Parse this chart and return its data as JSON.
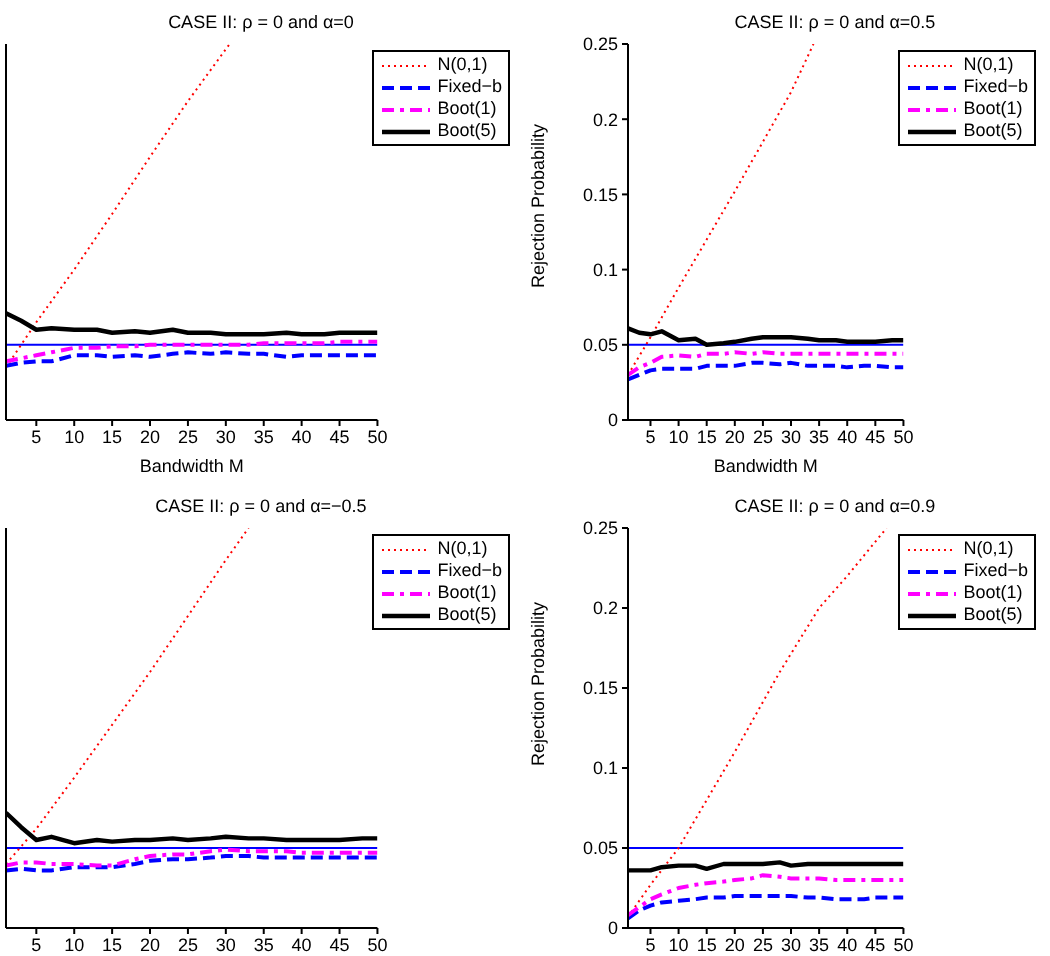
{
  "chart_data": [
    {
      "type": "line",
      "title": "CASE II: ρ = 0 and α=0",
      "xlabel": "Bandwidth M",
      "x": [
        1,
        3,
        5,
        7,
        10,
        13,
        15,
        18,
        20,
        23,
        25,
        28,
        30,
        33,
        35,
        38,
        40,
        43,
        45,
        48,
        50
      ],
      "xlim": [
        1,
        50
      ],
      "xticks": [
        5,
        10,
        15,
        20,
        25,
        30,
        35,
        40,
        45,
        50
      ],
      "ylim": [
        0,
        0.25
      ],
      "yticks": [
        0,
        0.05,
        0.1,
        0.15,
        0.2,
        0.25
      ],
      "tick_labels": "x",
      "legend": "top right",
      "ref_lines": [
        {
          "axis": "y",
          "value": 0.05,
          "color": "#0000ff"
        }
      ],
      "series": [
        {
          "name": "N(0,1)",
          "color": "#ff0000",
          "line_style": "dotted",
          "x": [
            1,
            5,
            10,
            15,
            20,
            25,
            30.5
          ],
          "values": [
            0.035,
            0.065,
            0.1,
            0.137,
            0.175,
            0.212,
            0.25
          ]
        },
        {
          "name": "Fixed−b",
          "color": "#0000ff",
          "line_style": "dashed",
          "values": [
            0.036,
            0.038,
            0.039,
            0.039,
            0.043,
            0.043,
            0.042,
            0.043,
            0.042,
            0.044,
            0.045,
            0.044,
            0.045,
            0.044,
            0.044,
            0.042,
            0.043,
            0.043,
            0.043,
            0.043,
            0.043
          ]
        },
        {
          "name": "Boot(1)",
          "color": "#ff00ff",
          "line_style": "dashdot",
          "values": [
            0.039,
            0.041,
            0.043,
            0.045,
            0.048,
            0.048,
            0.049,
            0.049,
            0.05,
            0.05,
            0.05,
            0.05,
            0.05,
            0.05,
            0.051,
            0.051,
            0.051,
            0.051,
            0.052,
            0.052,
            0.052
          ]
        },
        {
          "name": "Boot(5)",
          "color": "#000000",
          "line_style": "solid",
          "values": [
            0.071,
            0.066,
            0.06,
            0.061,
            0.06,
            0.06,
            0.058,
            0.059,
            0.058,
            0.06,
            0.058,
            0.058,
            0.057,
            0.057,
            0.057,
            0.058,
            0.057,
            0.057,
            0.058,
            0.058,
            0.058
          ]
        }
      ]
    },
    {
      "type": "line",
      "title": "CASE II: ρ = 0 and α=0.5",
      "xlabel": "Bandwidth M",
      "ylabel": "Rejection Probability",
      "x": [
        1,
        3,
        5,
        7,
        10,
        13,
        15,
        18,
        20,
        23,
        25,
        28,
        30,
        33,
        35,
        38,
        40,
        43,
        45,
        48,
        50
      ],
      "xlim": [
        1,
        50
      ],
      "xticks": [
        5,
        10,
        15,
        20,
        25,
        30,
        35,
        40,
        45,
        50
      ],
      "ylim": [
        0,
        0.25
      ],
      "yticks": [
        0,
        0.05,
        0.1,
        0.15,
        0.2,
        0.25
      ],
      "legend": "top right",
      "ref_lines": [
        {
          "axis": "y",
          "value": 0.05,
          "color": "#0000ff"
        }
      ],
      "series": [
        {
          "name": "N(0,1)",
          "color": "#ff0000",
          "line_style": "dotted",
          "x": [
            1,
            5,
            10,
            15,
            20,
            25,
            30,
            34
          ],
          "values": [
            0.03,
            0.055,
            0.088,
            0.12,
            0.152,
            0.185,
            0.218,
            0.25
          ]
        },
        {
          "name": "Fixed−b",
          "color": "#0000ff",
          "line_style": "dashed",
          "values": [
            0.027,
            0.03,
            0.033,
            0.034,
            0.034,
            0.034,
            0.036,
            0.036,
            0.036,
            0.038,
            0.038,
            0.037,
            0.038,
            0.036,
            0.036,
            0.036,
            0.035,
            0.036,
            0.036,
            0.035,
            0.035
          ]
        },
        {
          "name": "Boot(1)",
          "color": "#ff00ff",
          "line_style": "dashdot",
          "values": [
            0.03,
            0.035,
            0.038,
            0.042,
            0.043,
            0.042,
            0.044,
            0.044,
            0.045,
            0.044,
            0.045,
            0.044,
            0.044,
            0.044,
            0.044,
            0.044,
            0.044,
            0.044,
            0.044,
            0.044,
            0.044
          ]
        },
        {
          "name": "Boot(5)",
          "color": "#000000",
          "line_style": "solid",
          "values": [
            0.061,
            0.058,
            0.057,
            0.059,
            0.053,
            0.054,
            0.05,
            0.051,
            0.052,
            0.054,
            0.055,
            0.055,
            0.055,
            0.054,
            0.053,
            0.053,
            0.052,
            0.052,
            0.052,
            0.053,
            0.053
          ]
        }
      ]
    },
    {
      "type": "line",
      "title": "CASE II: ρ = 0 and α=−0.5",
      "x": [
        1,
        3,
        5,
        7,
        10,
        13,
        15,
        18,
        20,
        23,
        25,
        28,
        30,
        33,
        35,
        38,
        40,
        43,
        45,
        48,
        50
      ],
      "xlim": [
        1,
        50
      ],
      "xticks": [
        5,
        10,
        15,
        20,
        25,
        30,
        35,
        40,
        45,
        50
      ],
      "ylim": [
        0,
        0.25
      ],
      "yticks": [
        0,
        0.05,
        0.1,
        0.15,
        0.2,
        0.25
      ],
      "tick_labels": "x",
      "legend": "top right",
      "ref_lines": [
        {
          "axis": "y",
          "value": 0.05,
          "color": "#0000ff"
        }
      ],
      "series": [
        {
          "name": "N(0,1)",
          "color": "#ff0000",
          "line_style": "dotted",
          "x": [
            1,
            5,
            10,
            15,
            20,
            25,
            30,
            33
          ],
          "values": [
            0.04,
            0.062,
            0.094,
            0.127,
            0.16,
            0.195,
            0.23,
            0.25
          ]
        },
        {
          "name": "Fixed−b",
          "color": "#0000ff",
          "line_style": "dashed",
          "values": [
            0.036,
            0.037,
            0.036,
            0.036,
            0.038,
            0.038,
            0.038,
            0.04,
            0.042,
            0.043,
            0.043,
            0.044,
            0.045,
            0.045,
            0.044,
            0.044,
            0.044,
            0.044,
            0.044,
            0.044,
            0.044
          ]
        },
        {
          "name": "Boot(1)",
          "color": "#ff00ff",
          "line_style": "dashdot",
          "values": [
            0.039,
            0.041,
            0.041,
            0.04,
            0.04,
            0.039,
            0.039,
            0.043,
            0.045,
            0.046,
            0.046,
            0.048,
            0.049,
            0.048,
            0.048,
            0.048,
            0.047,
            0.047,
            0.047,
            0.047,
            0.047
          ]
        },
        {
          "name": "Boot(5)",
          "color": "#000000",
          "line_style": "solid",
          "values": [
            0.072,
            0.063,
            0.055,
            0.057,
            0.053,
            0.055,
            0.054,
            0.055,
            0.055,
            0.056,
            0.055,
            0.056,
            0.057,
            0.056,
            0.056,
            0.055,
            0.055,
            0.055,
            0.055,
            0.056,
            0.056
          ]
        }
      ]
    },
    {
      "type": "line",
      "title": "CASE II: ρ = 0 and α=0.9",
      "ylabel": "Rejection Probability",
      "x": [
        1,
        3,
        5,
        7,
        10,
        13,
        15,
        18,
        20,
        23,
        25,
        28,
        30,
        33,
        35,
        38,
        40,
        43,
        45,
        48,
        50
      ],
      "xlim": [
        1,
        50
      ],
      "xticks": [
        5,
        10,
        15,
        20,
        25,
        30,
        35,
        40,
        45,
        50
      ],
      "ylim": [
        0,
        0.25
      ],
      "yticks": [
        0,
        0.05,
        0.1,
        0.15,
        0.2,
        0.25
      ],
      "legend": "top right",
      "ref_lines": [
        {
          "axis": "y",
          "value": 0.05,
          "color": "#0000ff"
        }
      ],
      "series": [
        {
          "name": "N(0,1)",
          "color": "#ff0000",
          "line_style": "dotted",
          "x": [
            1,
            5,
            10,
            15,
            20,
            28,
            35,
            40,
            47
          ],
          "values": [
            0.007,
            0.027,
            0.05,
            0.08,
            0.11,
            0.16,
            0.2,
            0.22,
            0.25
          ]
        },
        {
          "name": "Fixed−b",
          "color": "#0000ff",
          "line_style": "dashed",
          "values": [
            0.006,
            0.011,
            0.014,
            0.016,
            0.017,
            0.018,
            0.019,
            0.019,
            0.02,
            0.02,
            0.02,
            0.02,
            0.02,
            0.019,
            0.019,
            0.018,
            0.018,
            0.018,
            0.019,
            0.019,
            0.019
          ]
        },
        {
          "name": "Boot(1)",
          "color": "#ff00ff",
          "line_style": "dashdot",
          "values": [
            0.008,
            0.013,
            0.018,
            0.021,
            0.025,
            0.027,
            0.028,
            0.029,
            0.03,
            0.031,
            0.033,
            0.032,
            0.031,
            0.031,
            0.031,
            0.03,
            0.03,
            0.03,
            0.03,
            0.03,
            0.03
          ]
        },
        {
          "name": "Boot(5)",
          "color": "#000000",
          "line_style": "solid",
          "values": [
            0.036,
            0.036,
            0.036,
            0.038,
            0.039,
            0.039,
            0.037,
            0.04,
            0.04,
            0.04,
            0.04,
            0.041,
            0.039,
            0.04,
            0.04,
            0.04,
            0.04,
            0.04,
            0.04,
            0.04,
            0.04
          ]
        }
      ]
    }
  ]
}
